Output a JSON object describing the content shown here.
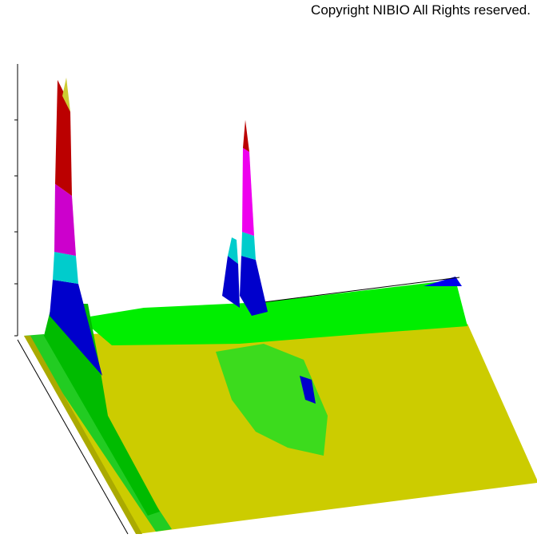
{
  "header": {
    "copyright": "Copyright NIBIO All Rights reserved."
  }
}
